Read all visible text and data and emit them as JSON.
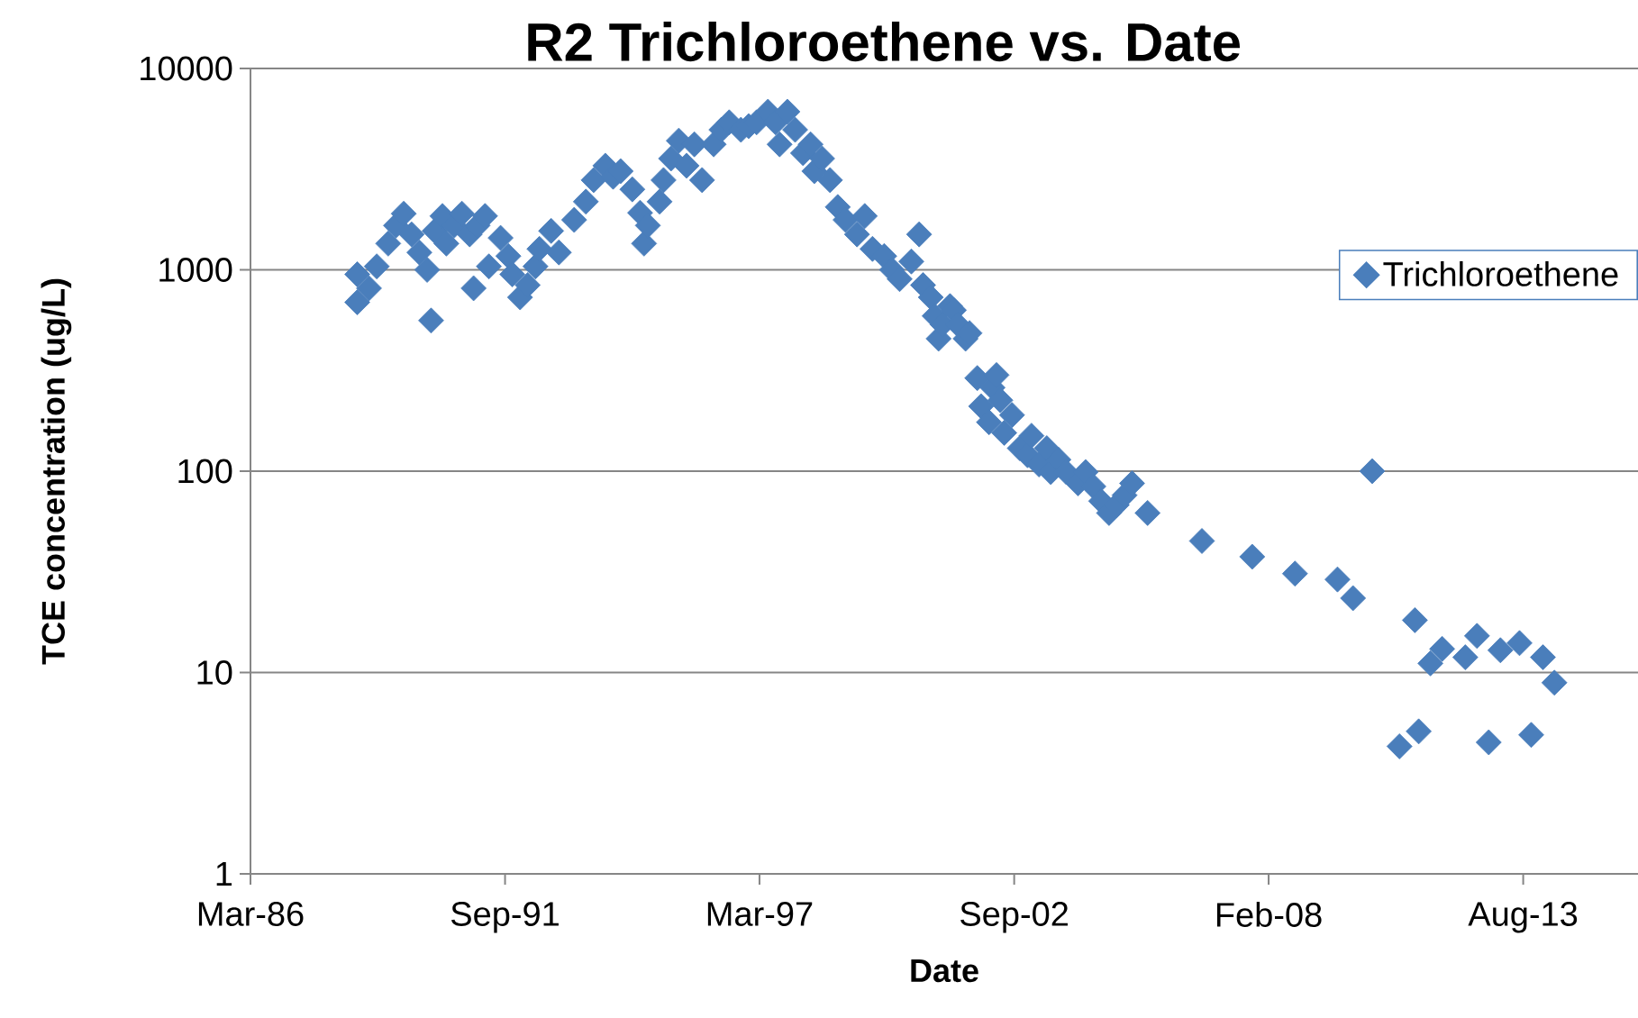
{
  "chart_data": {
    "type": "scatter",
    "title": "R2 Trichloroethene vs. Date",
    "xlabel": "Date",
    "ylabel": "TCE concentration (ug/L)",
    "log": "y",
    "grid": "y",
    "legend": "top right",
    "marker": "diamond",
    "xlim": [
      "1986-03-29",
      "2016-02-01"
    ],
    "xticks": [
      {
        "value": "1986-03-29",
        "label": "Mar-86"
      },
      {
        "value": "1991-09-19",
        "label": "Sep-91"
      },
      {
        "value": "1997-03-10",
        "label": "Mar-97"
      },
      {
        "value": "2002-09-01",
        "label": "Sep-02"
      },
      {
        "value": "2008-02-21",
        "label": "Feb-08"
      },
      {
        "value": "2013-08-13",
        "label": "Aug-13"
      }
    ],
    "ylim": [
      1,
      10000
    ],
    "yticks": [
      1,
      10,
      100,
      1000,
      10000
    ],
    "x": [
      "1988-07",
      "1988-07",
      "1988-10",
      "1988-12",
      "1989-03",
      "1989-05",
      "1989-07",
      "1989-09",
      "1989-11",
      "1990-01",
      "1990-02",
      "1990-03",
      "1990-05",
      "1990-06",
      "1990-08",
      "1990-10",
      "1990-12",
      "1991-01",
      "1991-02",
      "1991-04",
      "1991-05",
      "1991-08",
      "1991-10",
      "1991-11",
      "1992-01",
      "1992-03",
      "1992-05",
      "1992-06",
      "1992-09",
      "1992-11",
      "1993-03",
      "1993-06",
      "1993-08",
      "1993-11",
      "1994-01",
      "1994-03",
      "1994-06",
      "1994-08",
      "1994-09",
      "1994-10",
      "1995-01",
      "1995-02",
      "1995-04",
      "1995-06",
      "1995-08",
      "1995-10",
      "1995-12",
      "1996-03",
      "1996-05",
      "1996-07",
      "1996-10",
      "1996-12",
      "1997-02",
      "1997-05",
      "1997-07",
      "1997-08",
      "1997-10",
      "1997-12",
      "1998-02",
      "1998-04",
      "1998-05",
      "1998-07",
      "1998-09",
      "1998-11",
      "1999-01",
      "1999-04",
      "1999-06",
      "1999-08",
      "1999-11",
      "2000-01",
      "2000-03",
      "2000-06",
      "2000-08",
      "2000-09",
      "2000-11",
      "2000-12",
      "2001-01",
      "2001-02",
      "2001-04",
      "2001-05",
      "2001-06",
      "2001-08",
      "2001-09",
      "2001-11",
      "2001-12",
      "2002-02",
      "2002-03",
      "2002-04",
      "2002-05",
      "2002-06",
      "2002-08",
      "2002-10",
      "2002-12",
      "2003-01",
      "2003-03",
      "2003-05",
      "2003-06",
      "2003-08",
      "2003-10",
      "2004-01",
      "2004-03",
      "2004-05",
      "2004-07",
      "2004-09",
      "2004-11",
      "2005-01",
      "2005-03",
      "2005-07",
      "2006-09",
      "2007-10",
      "2008-09",
      "2009-08",
      "2009-12",
      "2010-05",
      "2010-12",
      "2011-04",
      "2011-05",
      "2011-08",
      "2011-11",
      "2012-05",
      "2012-08",
      "2012-11",
      "2013-02",
      "2013-07",
      "2013-10",
      "2014-01",
      "2014-04"
    ],
    "series": [
      {
        "name": "Trichloroethene",
        "color": "#4a7ebb",
        "values": [
          950,
          690,
          810,
          1040,
          1350,
          1660,
          1900,
          1500,
          1220,
          1000,
          560,
          1560,
          1850,
          1350,
          1660,
          1900,
          1500,
          810,
          1660,
          1850,
          1040,
          1440,
          1170,
          950,
          730,
          840,
          1040,
          1270,
          1560,
          1220,
          1770,
          2180,
          2790,
          3290,
          2900,
          3090,
          2510,
          1920,
          1350,
          1660,
          2180,
          2790,
          3570,
          4380,
          3290,
          4200,
          2790,
          4200,
          4960,
          5400,
          4960,
          5170,
          5400,
          6100,
          5400,
          4200,
          6100,
          4960,
          3800,
          4200,
          3090,
          3570,
          2790,
          2050,
          1770,
          1500,
          1850,
          1270,
          1170,
          1000,
          900,
          1100,
          1500,
          840,
          730,
          590,
          455,
          535,
          660,
          630,
          535,
          455,
          485,
          290,
          210,
          175,
          260,
          300,
          225,
          155,
          190,
          130,
          120,
          150,
          108,
          130,
          99,
          114,
          99,
          87,
          99,
          84,
          71,
          62,
          68,
          76,
          87,
          62,
          45,
          37.6,
          31,
          29,
          23.4,
          100,
          4.3,
          18.2,
          5.1,
          11.1,
          13.1,
          11.9,
          15.2,
          4.5,
          12.9,
          14,
          4.9,
          11.9,
          8.9
        ]
      }
    ]
  }
}
